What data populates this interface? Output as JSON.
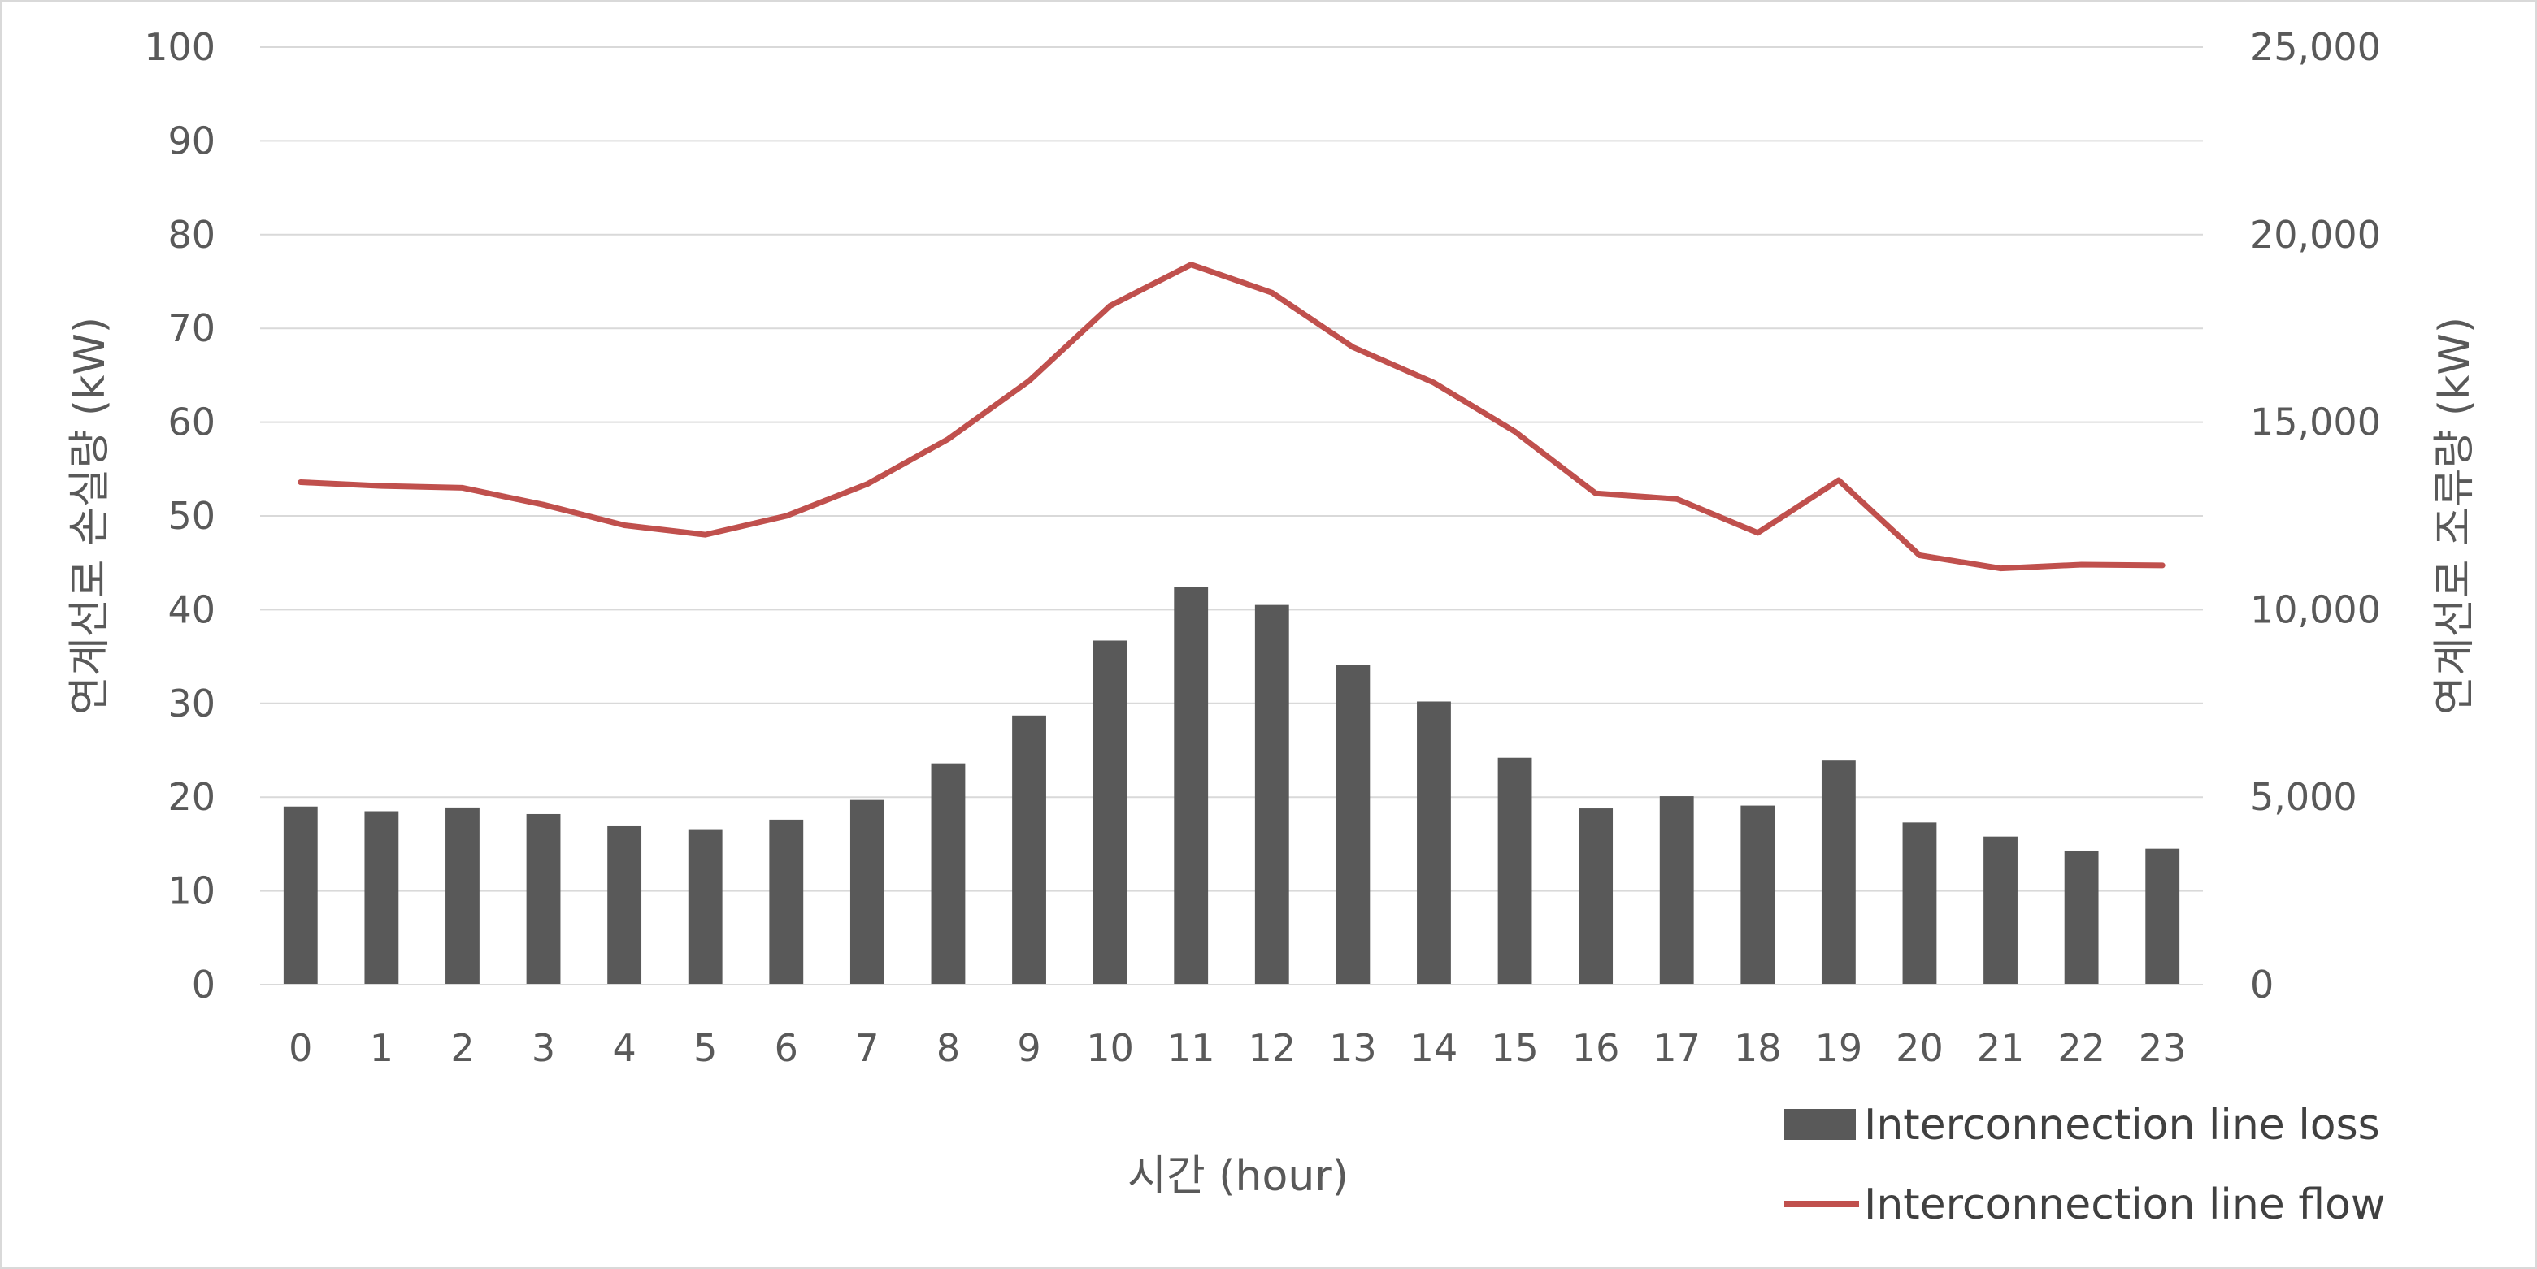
{
  "chart_data": {
    "type": "bar",
    "categories": [
      "0",
      "1",
      "2",
      "3",
      "4",
      "5",
      "6",
      "7",
      "8",
      "9",
      "10",
      "11",
      "12",
      "13",
      "14",
      "15",
      "16",
      "17",
      "18",
      "19",
      "20",
      "21",
      "22",
      "23"
    ],
    "series": [
      {
        "name": "Interconnection line loss",
        "type": "bar",
        "axis": "left",
        "color": "#595959",
        "values": [
          19.0,
          18.5,
          18.9,
          18.2,
          16.9,
          16.5,
          17.6,
          19.7,
          23.6,
          28.7,
          36.7,
          42.4,
          40.5,
          34.1,
          30.2,
          24.2,
          18.8,
          20.1,
          19.1,
          23.9,
          17.3,
          15.8,
          14.3,
          14.5
        ]
      },
      {
        "name": "Interconnection line flow",
        "type": "line",
        "axis": "right",
        "color": "#c0504d",
        "values": [
          13400,
          13300,
          13250,
          12800,
          12250,
          12000,
          12500,
          13350,
          14550,
          16100,
          18100,
          19200,
          18450,
          17000,
          16050,
          14750,
          13100,
          12950,
          12050,
          13450,
          11450,
          11100,
          11200,
          11180
        ]
      }
    ],
    "xlabel": "시간 (hour)",
    "ylabel": "연계선로 손실량 (kW)",
    "y2label": "연계선로 조류량 (kW)",
    "ylim": [
      0,
      100
    ],
    "y2lim": [
      0,
      25000
    ],
    "yticks": [
      "0",
      "10",
      "20",
      "30",
      "40",
      "50",
      "60",
      "70",
      "80",
      "90",
      "100"
    ],
    "y2ticks": [
      "0",
      "5,000",
      "10,000",
      "15,000",
      "20,000",
      "25,000"
    ],
    "grid": true,
    "legend_position": "bottom-right"
  }
}
